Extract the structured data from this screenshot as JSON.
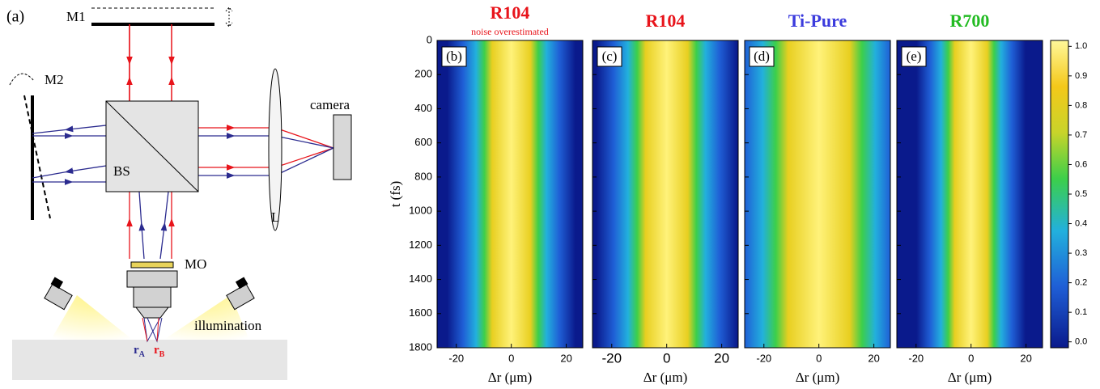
{
  "diagram": {
    "panel_label": "(a)",
    "m1": "M1",
    "m2": "M2",
    "bs": "BS",
    "lens": "L",
    "camera": "camera",
    "mo": "MO",
    "illumination": "illumination",
    "ra": "r",
    "ra_sub": "A",
    "rb": "r",
    "rb_sub": "B"
  },
  "chart_data": {
    "type": "heatmap",
    "panels": [
      {
        "title": "R104",
        "subtitle": "noise overestimated",
        "label": "(b)",
        "color": "#e8141b"
      },
      {
        "title": "R104",
        "label": "(c)",
        "color": "#e8141b"
      },
      {
        "title": "Ti-Pure",
        "label": "(d)",
        "color": "#3b3bdd"
      },
      {
        "title": "R700",
        "label": "(e)",
        "color": "#22bb22"
      }
    ],
    "x_label": "Δr (μm)",
    "y_label": "t (fs)",
    "xlim": [
      -27,
      26
    ],
    "xticks": [
      -20,
      0,
      20
    ],
    "ylim": [
      0,
      1800
    ],
    "yticks": [
      0,
      200,
      400,
      600,
      800,
      1000,
      1200,
      1400,
      1600,
      1800
    ],
    "colorbar": {
      "lim": [
        -0.02,
        1.02
      ],
      "ticks": [
        {
          "value": 0,
          "label": "0.0"
        },
        {
          "value": 0.1,
          "label": "0.1"
        },
        {
          "value": 0.2,
          "label": "0.2"
        },
        {
          "value": 0.3,
          "label": "0.3"
        },
        {
          "value": 0.4,
          "label": "0.4"
        },
        {
          "value": 0.5,
          "label": "0.5"
        },
        {
          "value": 0.6,
          "label": "0.6"
        },
        {
          "value": 0.7,
          "label": "0.7"
        },
        {
          "value": 0.8,
          "label": "0.8"
        },
        {
          "value": 0.9,
          "label": "0.9"
        },
        {
          "value": 1,
          "label": "1.0"
        }
      ]
    }
  }
}
